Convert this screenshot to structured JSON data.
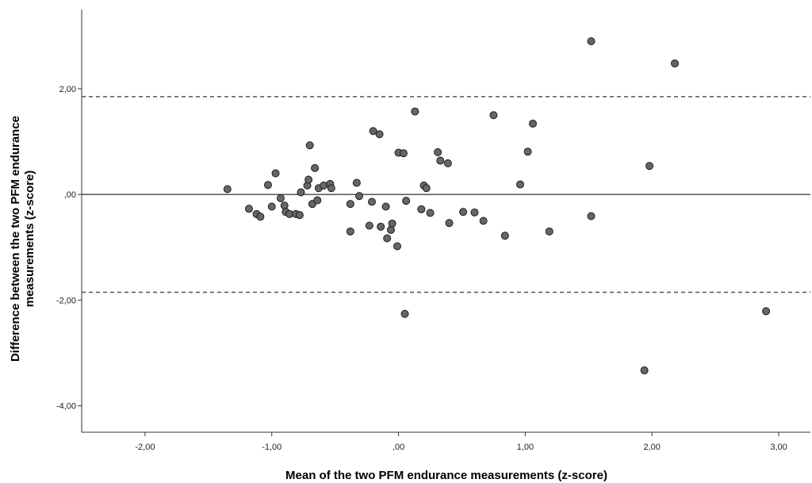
{
  "chart_data": {
    "type": "scatter",
    "xlabel": "Mean of the two PFM endurance measurements (z-score)",
    "ylabel_line1": "Difference between the two PFM endurance",
    "ylabel_line2": "measurements (z-score)",
    "xlim": [
      -2.5,
      3.25
    ],
    "ylim": [
      -4.5,
      3.5
    ],
    "x_ticks": [
      -2,
      -1,
      0,
      1,
      2,
      3
    ],
    "x_tick_labels": [
      "-2,00",
      "-1,00",
      ",00",
      "1,00",
      "2,00",
      "3,00"
    ],
    "y_ticks": [
      -4,
      -2,
      0,
      2
    ],
    "y_tick_labels": [
      "-4,00",
      "-2,00",
      ",00",
      "2,00"
    ],
    "mean_line": 0,
    "limits_of_agreement": [
      1.85,
      -1.85
    ],
    "grid": false,
    "marker_color": "#666666",
    "line_color": "#555555",
    "points": [
      [
        -1.35,
        0.1
      ],
      [
        -1.18,
        -0.27
      ],
      [
        -1.12,
        -0.37
      ],
      [
        -1.09,
        -0.42
      ],
      [
        -1.03,
        0.18
      ],
      [
        -1.0,
        -0.23
      ],
      [
        -0.97,
        0.4
      ],
      [
        -0.93,
        -0.07
      ],
      [
        -0.9,
        -0.21
      ],
      [
        -0.89,
        -0.33
      ],
      [
        -0.86,
        -0.37
      ],
      [
        -0.81,
        -0.37
      ],
      [
        -0.78,
        -0.39
      ],
      [
        -0.77,
        0.04
      ],
      [
        -0.72,
        0.17
      ],
      [
        -0.71,
        0.28
      ],
      [
        -0.7,
        0.93
      ],
      [
        -0.68,
        -0.18
      ],
      [
        -0.66,
        0.5
      ],
      [
        -0.64,
        -0.11
      ],
      [
        -0.63,
        0.12
      ],
      [
        -0.59,
        0.17
      ],
      [
        -0.54,
        0.2
      ],
      [
        -0.53,
        0.12
      ],
      [
        -0.38,
        -0.18
      ],
      [
        -0.38,
        -0.7
      ],
      [
        -0.33,
        0.22
      ],
      [
        -0.31,
        -0.03
      ],
      [
        -0.23,
        -0.59
      ],
      [
        -0.21,
        -0.14
      ],
      [
        -0.2,
        1.2
      ],
      [
        -0.15,
        1.14
      ],
      [
        -0.14,
        -0.61
      ],
      [
        -0.1,
        -0.23
      ],
      [
        -0.09,
        -0.83
      ],
      [
        -0.06,
        -0.67
      ],
      [
        -0.05,
        -0.55
      ],
      [
        -0.01,
        -0.98
      ],
      [
        0.0,
        0.79
      ],
      [
        0.04,
        0.78
      ],
      [
        0.05,
        -2.26
      ],
      [
        0.06,
        -0.12
      ],
      [
        0.13,
        1.57
      ],
      [
        0.18,
        -0.28
      ],
      [
        0.2,
        0.17
      ],
      [
        0.22,
        0.12
      ],
      [
        0.25,
        -0.35
      ],
      [
        0.31,
        0.8
      ],
      [
        0.33,
        0.64
      ],
      [
        0.39,
        0.59
      ],
      [
        0.4,
        -0.54
      ],
      [
        0.51,
        -0.33
      ],
      [
        0.6,
        -0.34
      ],
      [
        0.67,
        -0.5
      ],
      [
        0.75,
        1.5
      ],
      [
        0.84,
        -0.78
      ],
      [
        0.96,
        0.19
      ],
      [
        1.02,
        0.81
      ],
      [
        1.06,
        1.34
      ],
      [
        1.19,
        -0.7
      ],
      [
        1.52,
        2.9
      ],
      [
        1.52,
        -0.41
      ],
      [
        1.94,
        -3.33
      ],
      [
        1.98,
        0.54
      ],
      [
        2.18,
        2.48
      ],
      [
        2.9,
        -2.21
      ]
    ]
  }
}
